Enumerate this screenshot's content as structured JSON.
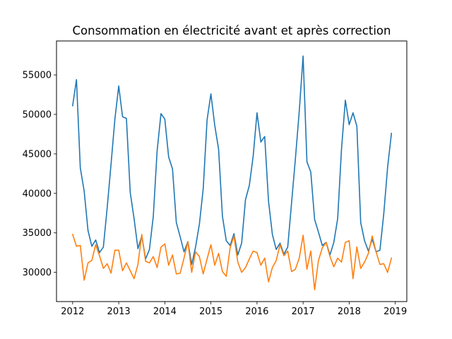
{
  "chart_data": {
    "type": "line",
    "title": "Consommation en électricité avant et après correction",
    "xlabel": "",
    "ylabel": "",
    "xlim": [
      2011.65,
      2019.25
    ],
    "ylim": [
      26300,
      59300
    ],
    "x_ticks": [
      2012,
      2013,
      2014,
      2015,
      2016,
      2017,
      2018,
      2019
    ],
    "x_tick_labels": [
      "2012",
      "2013",
      "2014",
      "2015",
      "2016",
      "2017",
      "2018",
      "2019"
    ],
    "y_ticks": [
      30000,
      35000,
      40000,
      45000,
      50000,
      55000
    ],
    "y_tick_labels": [
      "30000",
      "35000",
      "40000",
      "45000",
      "50000",
      "55000"
    ],
    "grid": false,
    "x_start": 2012,
    "x_step_months": 1,
    "series": [
      {
        "color": "#1f77b4",
        "values": [
          51100,
          54400,
          43200,
          40300,
          35300,
          33300,
          34100,
          32500,
          33200,
          38200,
          43700,
          49400,
          53600,
          49700,
          49500,
          40100,
          36800,
          33000,
          34600,
          31700,
          32900,
          37100,
          45400,
          50100,
          49400,
          44600,
          43100,
          36300,
          34500,
          32600,
          33900,
          31000,
          33200,
          36100,
          40600,
          49300,
          52600,
          48600,
          45600,
          37100,
          34000,
          33400,
          34900,
          32200,
          33700,
          39200,
          41000,
          44700,
          50200,
          46500,
          47200,
          39000,
          34800,
          32900,
          33700,
          32300,
          33200,
          38800,
          44400,
          50400,
          57400,
          44000,
          42700,
          36700,
          35100,
          33400,
          33800,
          32200,
          33800,
          36800,
          45600,
          51800,
          48700,
          50200,
          48500,
          36300,
          34000,
          32700,
          34200,
          32600,
          32800,
          37400,
          43300,
          47600
        ]
      },
      {
        "color": "#ff7f0e",
        "values": [
          34800,
          33300,
          33400,
          29000,
          31200,
          31500,
          33500,
          32100,
          30500,
          31100,
          29900,
          32800,
          32800,
          30200,
          31200,
          30200,
          29200,
          31000,
          34800,
          31400,
          31200,
          32000,
          30600,
          33200,
          33600,
          30900,
          32200,
          29800,
          29900,
          31800,
          33900,
          30000,
          32600,
          32000,
          29800,
          31700,
          33500,
          30900,
          32400,
          30100,
          29500,
          33100,
          34600,
          31300,
          30000,
          30600,
          31700,
          32700,
          32500,
          30900,
          31800,
          28800,
          30600,
          31500,
          33500,
          32100,
          32700,
          30100,
          30400,
          31800,
          34700,
          30400,
          32700,
          27800,
          31500,
          33100,
          33800,
          32000,
          30700,
          31800,
          31300,
          33800,
          34000,
          29200,
          33200,
          30500,
          31300,
          32400,
          34600,
          32600,
          31000,
          31100,
          30000,
          31800
        ]
      }
    ]
  }
}
